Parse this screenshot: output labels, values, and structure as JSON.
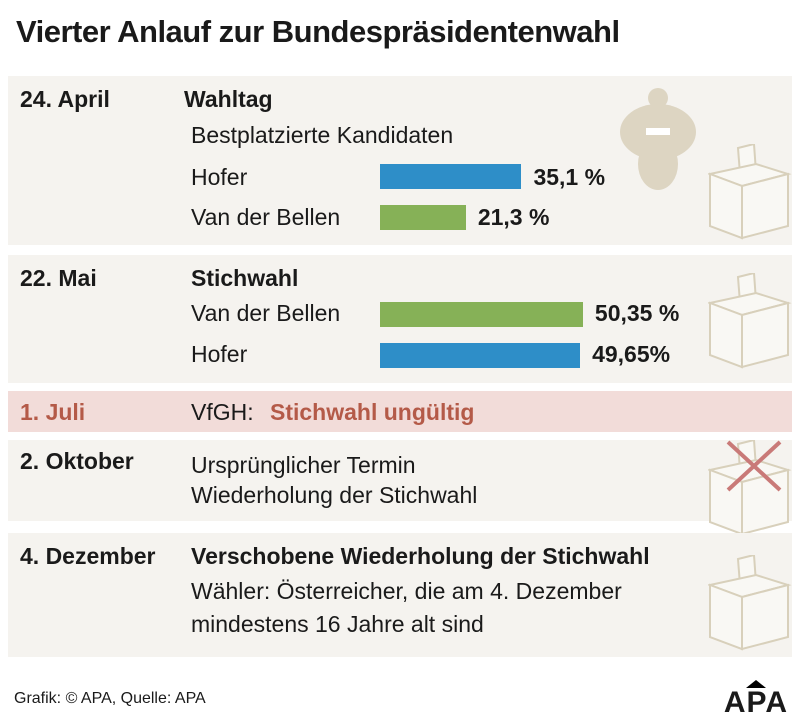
{
  "title": "Vierter Anlauf zur Bundespräsidentenwahl",
  "colors": {
    "hofer": "#2e8ec8",
    "van_der_bellen": "#86b157",
    "panel": "#f5f3ef",
    "highlight_panel": "#f2dcd9",
    "highlight_text": "#b45a48"
  },
  "rows": [
    {
      "date": "24. April",
      "heading": "Wahltag",
      "subheading": "Bestplatzierte Kandidaten",
      "icons": [
        "austrian-eagle",
        "ballot-box"
      ]
    },
    {
      "date": "22. Mai",
      "heading": "Stichwahl",
      "icons": [
        "ballot-box"
      ]
    },
    {
      "date": "1. Juli",
      "prefix": "VfGH:",
      "heading": "Stichwahl ungültig"
    },
    {
      "date": "2. Oktober",
      "line1": "Ursprünglicher Termin",
      "line2": "Wiederholung der Stichwahl",
      "icons": [
        "ballot-box-crossed"
      ]
    },
    {
      "date": "4. Dezember",
      "heading": "Verschobene Wiederholung der Stichwahl",
      "line1": "Wähler: Österreicher, die am 4. Dezember",
      "line2": "mindestens 16 Jahre alt sind",
      "icons": [
        "ballot-box"
      ]
    }
  ],
  "chart_data": [
    {
      "type": "bar",
      "orientation": "horizontal",
      "title": "Bestplatzierte Kandidaten",
      "categories": [
        "Hofer",
        "Van der Bellen"
      ],
      "values": [
        35.1,
        21.3
      ],
      "labels": [
        "35,1 %",
        "21,3 %"
      ],
      "colors": [
        "#2e8ec8",
        "#86b157"
      ]
    },
    {
      "type": "bar",
      "orientation": "horizontal",
      "title": "Stichwahl",
      "categories": [
        "Van der Bellen",
        "Hofer"
      ],
      "values": [
        50.35,
        49.65
      ],
      "labels": [
        "50,35 %",
        "49,65%"
      ],
      "colors": [
        "#86b157",
        "#2e8ec8"
      ]
    }
  ],
  "footer": {
    "source": "Grafik: © APA, Quelle: APA",
    "logo": "APA"
  }
}
